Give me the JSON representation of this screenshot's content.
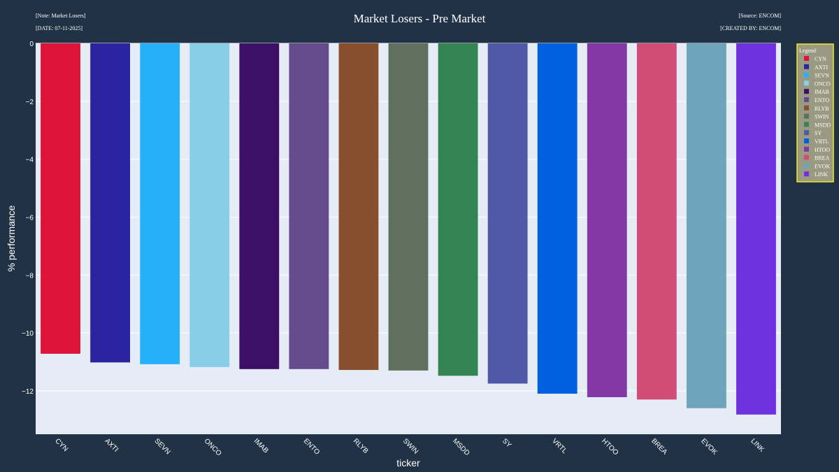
{
  "header": {
    "title": "Market Losers - Pre Market",
    "note": "[Note: Market Losers]",
    "date": "[DATE: 07-11-2025]",
    "source": "[Source: ENCOM]",
    "created_by": "[CREATED BY: ENCOM]"
  },
  "legend": {
    "title": "Legend"
  },
  "colors": {
    "page_bg": "#223246",
    "plot_bg": "#e5ecf6",
    "gridline": "#ffffff",
    "legend_bg": "#9a9a82",
    "legend_border": "#f2ea1f",
    "text": "#ffffff"
  },
  "chart_data": {
    "type": "bar",
    "title": "Market Losers - Pre Market",
    "xlabel": "ticker",
    "ylabel": "% performance",
    "ylim": [
      -13.5,
      0
    ],
    "yticks": [
      0,
      -2,
      -4,
      -6,
      -8,
      -10,
      -12
    ],
    "ytick_labels": [
      "0",
      "−2",
      "−4",
      "−6",
      "−8",
      "−10",
      "−12"
    ],
    "grid": true,
    "legend_position": "top-right",
    "categories": [
      "CYN",
      "AXTI",
      "SEVN",
      "ONCO",
      "IMAB",
      "ENTO",
      "RLYB",
      "SWIN",
      "MSDD",
      "SY",
      "VRTL",
      "HTOO",
      "BREA",
      "EVOK",
      "LINK"
    ],
    "values": [
      -10.72,
      -11.02,
      -11.08,
      -11.18,
      -11.25,
      -11.25,
      -11.28,
      -11.3,
      -11.48,
      -11.75,
      -12.1,
      -12.22,
      -12.3,
      -12.6,
      -12.82
    ],
    "series_colors": [
      "#dc143c",
      "#2a24a0",
      "#27b0fa",
      "#87cee6",
      "#3d1068",
      "#664b8c",
      "#884f2e",
      "#60705f",
      "#338452",
      "#5058a8",
      "#0060e0",
      "#8436a6",
      "#d24c78",
      "#6ea4bc",
      "#6f30e0"
    ]
  }
}
